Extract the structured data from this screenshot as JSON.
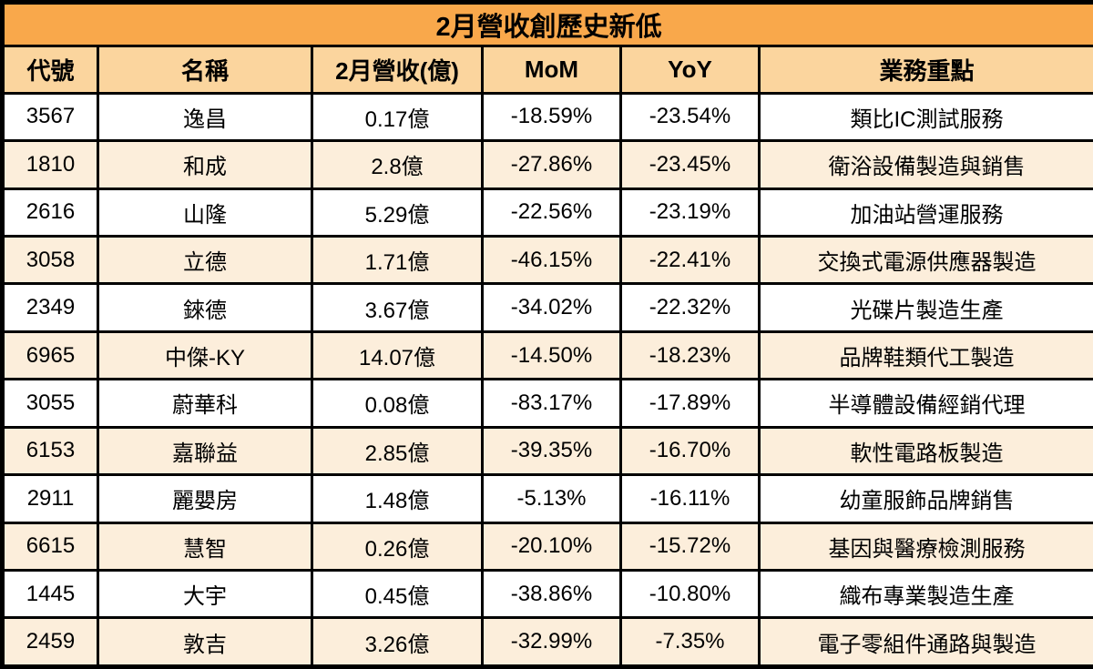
{
  "title": "2月營收創歷史新低",
  "table": {
    "columns": [
      "代號",
      "名稱",
      "2月營收(億)",
      "MoM",
      "YoY",
      "業務重點"
    ],
    "rows": [
      [
        "3567",
        "逸昌",
        "0.17億",
        "-18.59%",
        "-23.54%",
        "類比IC測試服務"
      ],
      [
        "1810",
        "和成",
        "2.8億",
        "-27.86%",
        "-23.45%",
        "衛浴設備製造與銷售"
      ],
      [
        "2616",
        "山隆",
        "5.29億",
        "-22.56%",
        "-23.19%",
        "加油站營運服務"
      ],
      [
        "3058",
        "立德",
        "1.71億",
        "-46.15%",
        "-22.41%",
        "交換式電源供應器製造"
      ],
      [
        "2349",
        "錸德",
        "3.67億",
        "-34.02%",
        "-22.32%",
        "光碟片製造生產"
      ],
      [
        "6965",
        "中傑-KY",
        "14.07億",
        "-14.50%",
        "-18.23%",
        "品牌鞋類代工製造"
      ],
      [
        "3055",
        "蔚華科",
        "0.08億",
        "-83.17%",
        "-17.89%",
        "半導體設備經銷代理"
      ],
      [
        "6153",
        "嘉聯益",
        "2.85億",
        "-39.35%",
        "-16.70%",
        "軟性電路板製造"
      ],
      [
        "2911",
        "麗嬰房",
        "1.48億",
        "-5.13%",
        "-16.11%",
        "幼童服飾品牌銷售"
      ],
      [
        "6615",
        "慧智",
        "0.26億",
        "-20.10%",
        "-15.72%",
        "基因與醫療檢測服務"
      ],
      [
        "1445",
        "大宇",
        "0.45億",
        "-38.86%",
        "-10.80%",
        "織布專業製造生產"
      ],
      [
        "2459",
        "敦吉",
        "3.26億",
        "-32.99%",
        "-7.35%",
        "電子零組件通路與製造"
      ]
    ]
  },
  "colors": {
    "title_bg": "#F9A84B",
    "header_bg": "#FBD59E",
    "row_white_bg": "#FFFFFF",
    "row_cream_bg": "#FCEEDB",
    "border": "#000000",
    "text": "#000000"
  }
}
